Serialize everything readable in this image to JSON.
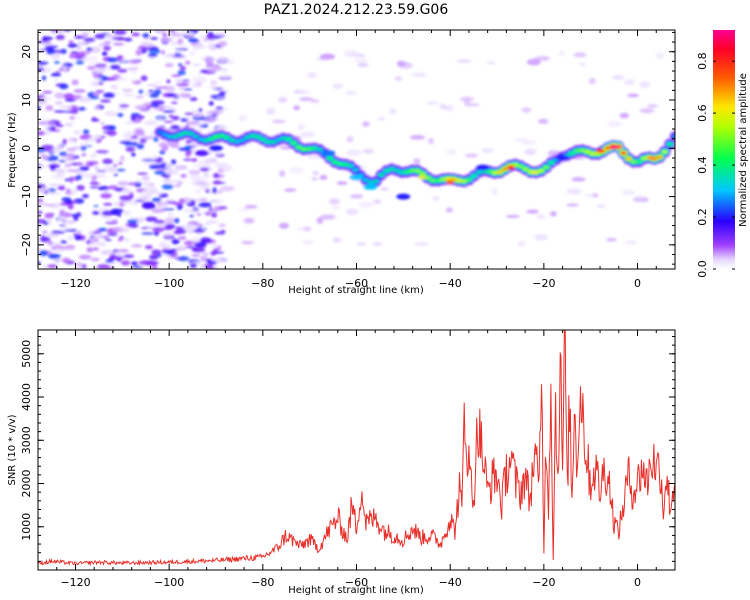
{
  "figure": {
    "title": "PAZ1.2024.212.23.59.G06"
  },
  "chart_data": [
    {
      "type": "heatmap",
      "xlabel": "Height of straight line (km)",
      "ylabel": "Frequency (Hz)",
      "xlim": [
        -128,
        8
      ],
      "ylim": [
        -25,
        24.5
      ],
      "xticks": [
        -120,
        -100,
        -80,
        -60,
        -40,
        -20,
        0
      ],
      "yticks": [
        -20,
        -10,
        0,
        10,
        20
      ],
      "colorbar": {
        "label": "Normalized spectral amplitude",
        "range": [
          0.0,
          0.92
        ],
        "ticks": [
          "0.0",
          "0.2",
          "0.4",
          "0.6",
          "0.8"
        ],
        "colormap": "gist_rainbow_r"
      },
      "ridge": {
        "description_points_x": [
          -100,
          -95,
          -90,
          -85,
          -80,
          -75,
          -70,
          -65,
          -60,
          -56,
          -52,
          -48,
          -44,
          -40,
          -36,
          -32,
          -28,
          -24,
          -20,
          -16,
          -12,
          -8,
          -4,
          0,
          4,
          8
        ],
        "frequency_hz": [
          3,
          2.5,
          2,
          2,
          2,
          1.5,
          0,
          -2,
          -5,
          -7,
          -4,
          -5,
          -6,
          -7,
          -6,
          -5,
          -4,
          -4,
          -5,
          -1,
          -1,
          -0.5,
          0,
          -3,
          -2,
          2
        ],
        "peak_amplitude": [
          0.35,
          0.4,
          0.45,
          0.4,
          0.4,
          0.45,
          0.5,
          0.45,
          0.4,
          0.35,
          0.45,
          0.5,
          0.55,
          0.7,
          0.5,
          0.45,
          0.75,
          0.6,
          0.55,
          0.35,
          0.5,
          0.8,
          0.9,
          0.55,
          0.75,
          0.35
        ]
      }
    },
    {
      "type": "line",
      "xlabel": "Height of straight line (km)",
      "ylabel": "SNR (10 * v/v)",
      "xlim": [
        -128,
        8
      ],
      "ylim": [
        0,
        5550
      ],
      "xticks": [
        -120,
        -100,
        -80,
        -60,
        -40,
        -20,
        0
      ],
      "yticks": [
        1000,
        2000,
        3000,
        4000,
        5000
      ],
      "series": [
        {
          "color": "#e8302a",
          "x": [
            -128,
            -125,
            -120,
            -115,
            -110,
            -105,
            -100,
            -95,
            -90,
            -85,
            -82,
            -80,
            -77,
            -75,
            -72,
            -70,
            -68,
            -66,
            -64,
            -62,
            -61,
            -60,
            -59,
            -58,
            -56,
            -54,
            -52,
            -50,
            -48,
            -46,
            -44,
            -42,
            -40,
            -39,
            -38,
            -37.5,
            -37,
            -36,
            -35,
            -34.5,
            -34,
            -33,
            -32,
            -31,
            -30,
            -29,
            -28,
            -27,
            -26,
            -25,
            -24,
            -23,
            -22,
            -21,
            -20.5,
            -20,
            -19.5,
            -19,
            -18.5,
            -18,
            -17.5,
            -17,
            -16.5,
            -16,
            -15.5,
            -15,
            -14.5,
            -14,
            -13.5,
            -13,
            -12,
            -11,
            -10,
            -9,
            -8,
            -7,
            -6,
            -5,
            -4,
            -3,
            -2,
            -1,
            0,
            1,
            2,
            3,
            4,
            5,
            5.5,
            6,
            7,
            8
          ],
          "y": [
            150,
            200,
            150,
            180,
            160,
            170,
            180,
            200,
            220,
            260,
            280,
            300,
            500,
            800,
            550,
            700,
            500,
            900,
            1200,
            700,
            1500,
            1000,
            1900,
            1100,
            1200,
            900,
            800,
            700,
            950,
            750,
            800,
            600,
            1200,
            900,
            1900,
            1300,
            3700,
            2400,
            1600,
            2700,
            3400,
            2600,
            1800,
            2100,
            2200,
            1500,
            2300,
            2600,
            2000,
            1800,
            2200,
            1600,
            2700,
            1900,
            4700,
            500,
            3100,
            1500,
            4300,
            300,
            3700,
            2200,
            4900,
            2400,
            5500,
            1800,
            4000,
            1500,
            3900,
            2600,
            4200,
            2700,
            2000,
            2400,
            1800,
            2400,
            2000,
            1100,
            900,
            1500,
            2200,
            1800,
            2000,
            2400,
            2000,
            2600,
            2400,
            2300,
            1300,
            2200,
            1500,
            2000
          ]
        }
      ]
    }
  ]
}
